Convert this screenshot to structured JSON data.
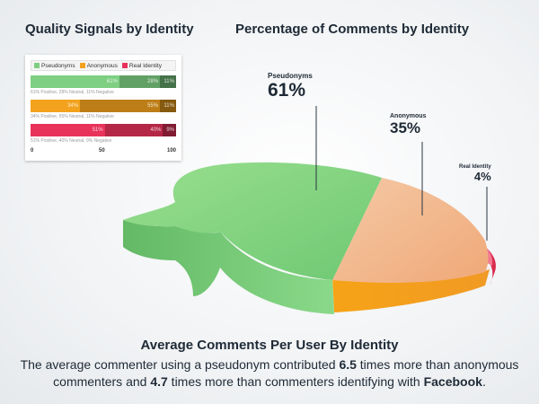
{
  "colors": {
    "pseudonyms": "#7ecf82",
    "anonymous": "#f3a21d",
    "real": "#e8325a"
  },
  "quality": {
    "title": "Quality Signals by Identity",
    "legend": [
      "Pseudonyms",
      "Anonymous",
      "Real Identity"
    ],
    "rows": [
      {
        "name": "Pseudonyms",
        "segments": [
          {
            "value": 61,
            "label": "61%"
          },
          {
            "value": 28,
            "label": "28%"
          },
          {
            "value": 11,
            "label": "11%"
          }
        ],
        "caption": "61% Positive, 28% Neutral, 11% Negative"
      },
      {
        "name": "Anonymous",
        "segments": [
          {
            "value": 34,
            "label": "34%"
          },
          {
            "value": 55,
            "label": "55%"
          },
          {
            "value": 11,
            "label": "11%"
          }
        ],
        "caption": "34% Positive, 55% Neutral, 11% Negative"
      },
      {
        "name": "Real Identity",
        "segments": [
          {
            "value": 51,
            "label": "51%"
          },
          {
            "value": 40,
            "label": "40%"
          },
          {
            "value": 9,
            "label": "9%"
          }
        ],
        "caption": "51% Positive, 40% Neutral, 9% Negative"
      }
    ],
    "ticks": [
      "0",
      "50",
      "100"
    ]
  },
  "pie": {
    "title": "Percentage of Comments by Identity"
  },
  "chart_data": [
    {
      "type": "bar",
      "title": "Quality Signals by Identity",
      "categories": [
        "Pseudonyms",
        "Anonymous",
        "Real Identity"
      ],
      "series": [
        {
          "values": [
            61,
            34,
            51
          ]
        },
        {
          "values": [
            28,
            55,
            40
          ]
        },
        {
          "values": [
            11,
            11,
            9
          ]
        }
      ],
      "xlim": [
        0,
        100
      ]
    },
    {
      "type": "pie",
      "title": "Percentage of Comments by Identity",
      "labels": [
        "Pseudonyms",
        "Anonymous",
        "Real Identity"
      ],
      "values": [
        61,
        35,
        4
      ],
      "value_labels": [
        "61%",
        "35%",
        "4%"
      ]
    }
  ],
  "caption": {
    "title": "Average Comments Per User By Identity",
    "p1": "The average commenter using a pseudonym contributed ",
    "b1": "6.5",
    "p2": " times more than anonymous commenters and ",
    "b2": "4.7",
    "p3": " times more than commenters identifying with ",
    "b3": "Facebook",
    "p4": "."
  }
}
